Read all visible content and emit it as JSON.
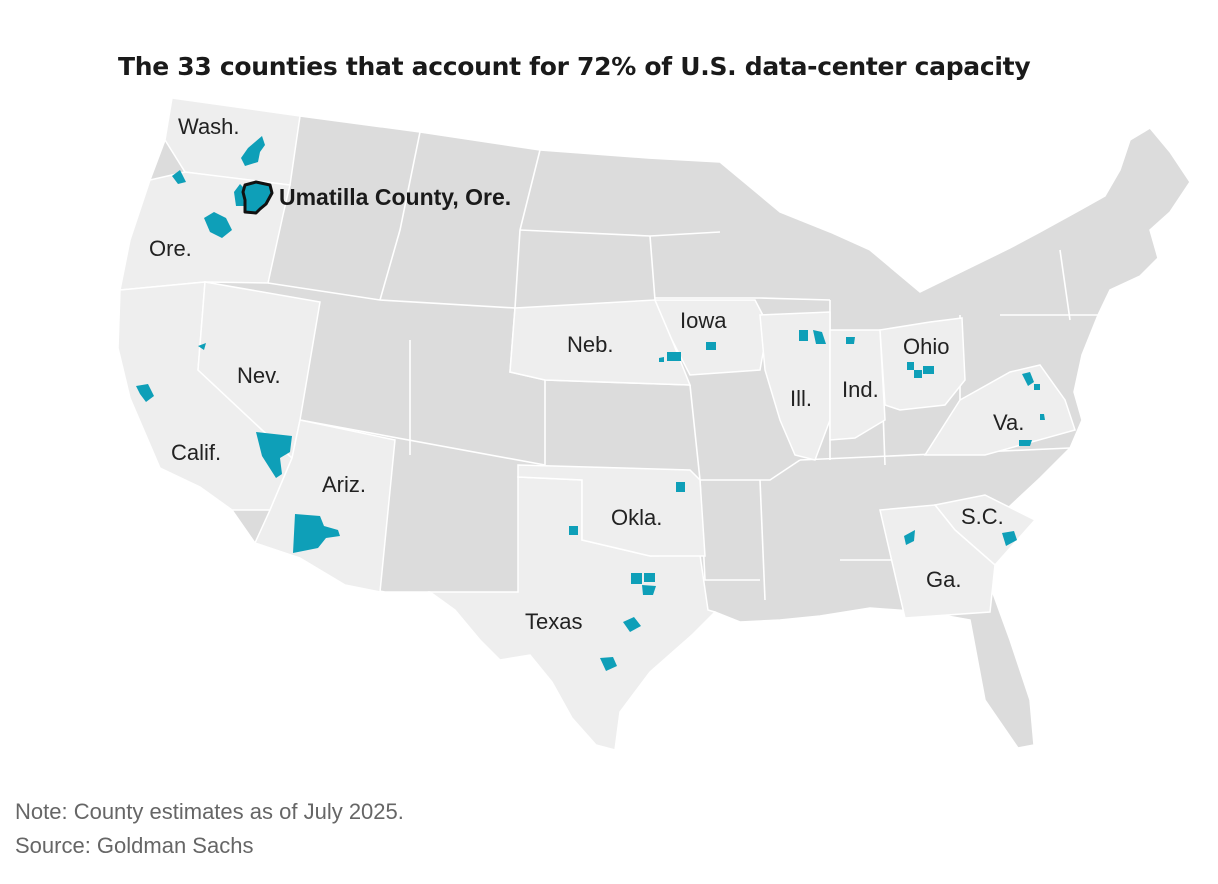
{
  "title": "The 33 counties that account for 72% of U.S. data-center capacity",
  "highlight_label": "Umatilla County, Ore.",
  "state_labels": {
    "wash": "Wash.",
    "ore": "Ore.",
    "calif": "Calif.",
    "nev": "Nev.",
    "ariz": "Ariz.",
    "texas": "Texas",
    "okla": "Okla.",
    "neb": "Neb.",
    "iowa": "Iowa",
    "ill": "Ill.",
    "ind": "Ind.",
    "ohio": "Ohio",
    "va": "Va.",
    "sc": "S.C.",
    "ga": "Ga."
  },
  "note": "Note: County estimates as of July 2025.",
  "source": "Source: Goldman Sachs",
  "colors": {
    "county_fill": "#0e9fb8",
    "land_dark": "#dcdcdc",
    "land_light": "#eeeeee",
    "border": "#ffffff",
    "highlight_stroke": "#111111"
  }
}
